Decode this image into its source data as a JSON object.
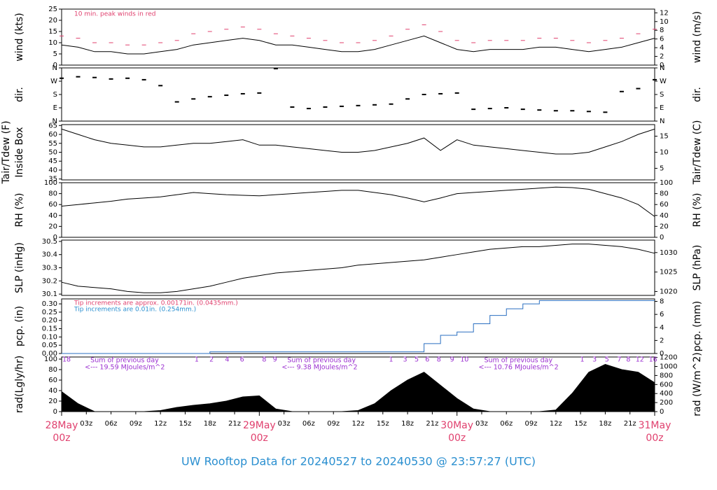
{
  "chart_data": [
    {
      "type": "line",
      "ylabel": "wind (kts)",
      "y2label": "wind (m/s)",
      "annotation": "10 min. peak winds in red",
      "xlim": [
        0,
        72
      ],
      "x": [
        0,
        2,
        4,
        6,
        8,
        10,
        12,
        14,
        16,
        18,
        20,
        22,
        24,
        26,
        28,
        30,
        32,
        34,
        36,
        38,
        40,
        42,
        44,
        46,
        48,
        50,
        52,
        54,
        56,
        58,
        60,
        62,
        64,
        66,
        68,
        70,
        72
      ],
      "ylim": [
        0,
        25
      ],
      "yticks": [
        0,
        5,
        10,
        15,
        20,
        25
      ],
      "y2lim": [
        0,
        12.86
      ],
      "y2ticks": [
        0,
        2,
        4,
        6,
        8,
        10,
        12
      ],
      "series": [
        {
          "color": "#000000",
          "values": [
            9,
            8,
            6,
            6,
            5,
            5,
            6,
            7,
            9,
            10,
            11,
            12,
            11,
            9,
            9,
            8,
            7,
            6,
            6,
            7,
            9,
            11,
            13,
            10,
            7,
            6,
            7,
            7,
            7,
            8,
            8,
            7,
            6,
            7,
            8,
            10,
            12
          ]
        },
        {
          "color": "#e0406e",
          "marker": "dash",
          "values": [
            13,
            12,
            10,
            10,
            9,
            9,
            10,
            11,
            14,
            15,
            16,
            17,
            16,
            14,
            13,
            12,
            11,
            10,
            10,
            11,
            13,
            16,
            18,
            15,
            11,
            10,
            11,
            11,
            11,
            12,
            12,
            11,
            10,
            11,
            12,
            14,
            16
          ]
        }
      ]
    },
    {
      "type": "scatter",
      "ylabel": "dir.",
      "y2label": "dir.",
      "xlim": [
        0,
        72
      ],
      "x": [
        0,
        2,
        4,
        6,
        8,
        10,
        12,
        14,
        16,
        18,
        20,
        22,
        24,
        26,
        28,
        30,
        32,
        34,
        36,
        38,
        40,
        42,
        44,
        46,
        48,
        50,
        52,
        54,
        56,
        58,
        60,
        62,
        64,
        66,
        68,
        70,
        72
      ],
      "ylim": [
        0,
        360
      ],
      "yticks": [
        {
          "value": 0,
          "label": "N"
        },
        {
          "value": 90,
          "label": "E"
        },
        {
          "value": 180,
          "label": "S"
        },
        {
          "value": 270,
          "label": "W"
        },
        {
          "value": 360,
          "label": "N"
        }
      ],
      "y2lim": [
        0,
        360
      ],
      "y2ticks": [
        {
          "value": 0,
          "label": "N"
        },
        {
          "value": 90,
          "label": "E"
        },
        {
          "value": 180,
          "label": "S"
        },
        {
          "value": 270,
          "label": "W"
        },
        {
          "value": 360,
          "label": "N"
        }
      ],
      "series": [
        {
          "color": "#000000",
          "values": [
            290,
            300,
            295,
            285,
            290,
            280,
            240,
            130,
            150,
            165,
            175,
            185,
            190,
            355,
            95,
            85,
            95,
            100,
            105,
            110,
            115,
            150,
            180,
            185,
            190,
            80,
            85,
            90,
            80,
            75,
            70,
            70,
            65,
            60,
            200,
            220,
            280
          ]
        }
      ]
    },
    {
      "type": "line",
      "ylabel": [
        "Tair/Tdew (F)",
        "Inside Box"
      ],
      "y2label": "Tair/Tdew (C)",
      "xlim": [
        0,
        72
      ],
      "x": [
        0,
        2,
        4,
        6,
        8,
        10,
        12,
        14,
        16,
        18,
        20,
        22,
        24,
        26,
        28,
        30,
        32,
        34,
        36,
        38,
        40,
        42,
        44,
        46,
        48,
        50,
        52,
        54,
        56,
        58,
        60,
        62,
        64,
        66,
        68,
        70,
        72
      ],
      "ylim": [
        34.5,
        65.5
      ],
      "yticks": [
        35,
        40,
        45,
        50,
        55,
        60,
        65
      ],
      "y2lim": [
        1.39,
        18.61
      ],
      "y2ticks": [
        5,
        10,
        15
      ],
      "series": [
        {
          "color": "#000000",
          "values": [
            63,
            60,
            57,
            55,
            54,
            53,
            53,
            54,
            55,
            55,
            56,
            57,
            54,
            54,
            53,
            52,
            51,
            50,
            50,
            51,
            53,
            55,
            58,
            51,
            57,
            54,
            53,
            52,
            51,
            50,
            49,
            49,
            50,
            53,
            56,
            60,
            63
          ]
        }
      ]
    },
    {
      "type": "line",
      "ylabel": "RH (%)",
      "y2label": "RH (%)",
      "xlim": [
        0,
        72
      ],
      "x": [
        0,
        2,
        4,
        6,
        8,
        10,
        12,
        14,
        16,
        18,
        20,
        22,
        24,
        26,
        28,
        30,
        32,
        34,
        36,
        38,
        40,
        42,
        44,
        46,
        48,
        50,
        52,
        54,
        56,
        58,
        60,
        62,
        64,
        66,
        68,
        70,
        72
      ],
      "ylim": [
        0,
        100
      ],
      "yticks": [
        0,
        20,
        40,
        60,
        80,
        100
      ],
      "y2lim": [
        0,
        100
      ],
      "y2ticks": [
        0,
        20,
        40,
        60,
        80,
        100
      ],
      "series": [
        {
          "color": "#000000",
          "values": [
            57,
            60,
            63,
            66,
            70,
            72,
            74,
            78,
            82,
            80,
            78,
            77,
            76,
            78,
            80,
            82,
            84,
            86,
            86,
            82,
            78,
            72,
            65,
            72,
            80,
            82,
            84,
            86,
            88,
            90,
            92,
            91,
            88,
            80,
            72,
            60,
            38
          ]
        }
      ]
    },
    {
      "type": "line",
      "ylabel": "SLP (inHg)",
      "y2label": "SLP (hPa)",
      "xlim": [
        0,
        72
      ],
      "x": [
        0,
        2,
        4,
        6,
        8,
        10,
        12,
        14,
        16,
        18,
        20,
        22,
        24,
        26,
        28,
        30,
        32,
        34,
        36,
        38,
        40,
        42,
        44,
        46,
        48,
        50,
        52,
        54,
        56,
        58,
        60,
        62,
        64,
        66,
        68,
        70,
        72
      ],
      "ylim": [
        30.09,
        30.51
      ],
      "yticks": [
        30.1,
        30.2,
        30.3,
        30.4,
        30.5
      ],
      "y2lim": [
        1019.0,
        1033.2
      ],
      "y2ticks": [
        1020,
        1025,
        1030
      ],
      "series": [
        {
          "color": "#000000",
          "values": [
            30.19,
            30.16,
            30.15,
            30.14,
            30.12,
            30.11,
            30.11,
            30.12,
            30.14,
            30.16,
            30.19,
            30.22,
            30.24,
            30.26,
            30.27,
            30.28,
            30.29,
            30.3,
            30.32,
            30.33,
            30.34,
            30.35,
            30.36,
            30.38,
            30.4,
            30.42,
            30.44,
            30.45,
            30.46,
            30.46,
            30.47,
            30.48,
            30.48,
            30.47,
            30.46,
            30.44,
            30.41
          ]
        }
      ]
    },
    {
      "type": "step",
      "ylabel": "pcp. (in)",
      "y2label": "pcp. (mm)",
      "notes": [
        {
          "text": "Tip increments are approx. 0.00171in. (0.0435mm.)",
          "color": "#e0406e"
        },
        {
          "text": "Tip increments are 0.01in. (0.254mm.)",
          "color": "#2a8fd0"
        }
      ],
      "xlim": [
        0,
        72
      ],
      "x": [
        0,
        2,
        4,
        6,
        8,
        10,
        12,
        14,
        16,
        18,
        20,
        22,
        24,
        26,
        28,
        30,
        32,
        34,
        36,
        38,
        40,
        42,
        44,
        46,
        48,
        50,
        52,
        54,
        56,
        58,
        60,
        62,
        64,
        66,
        68,
        70,
        72
      ],
      "ylim": [
        0,
        0.33
      ],
      "yticks": [
        {
          "value": 0,
          "label": "0.00"
        },
        0.05,
        {
          "value": 0.1,
          "label": "0.10"
        },
        0.15,
        {
          "value": 0.2,
          "label": "0.20"
        },
        0.25,
        {
          "value": 0.3,
          "label": "0.30"
        }
      ],
      "y2lim": [
        0,
        8.38
      ],
      "y2ticks": [
        0,
        2,
        4,
        6,
        8
      ],
      "series": [
        {
          "color": "#2a6fc0",
          "values": [
            0,
            0,
            0,
            0,
            0,
            0,
            0,
            0,
            0,
            0.01,
            0.01,
            0.01,
            0.01,
            0.01,
            0.01,
            0.01,
            0.01,
            0.01,
            0.01,
            0.01,
            0.01,
            0.01,
            0.06,
            0.11,
            0.13,
            0.18,
            0.23,
            0.27,
            0.3,
            0.32,
            0.32,
            0.32,
            0.32,
            0.32,
            0.32,
            0.32,
            0.32
          ]
        }
      ]
    },
    {
      "type": "area",
      "ylabel": "rad(Lgly/hr)",
      "y2label": "rad (W/m^2)",
      "title": "UW Rooftop Data for 20240527  to  20240530 @ 23:57:27  (UTC)",
      "xlim": [
        0,
        72
      ],
      "x": [
        0,
        2,
        4,
        6,
        8,
        10,
        12,
        14,
        16,
        18,
        20,
        22,
        24,
        26,
        28,
        30,
        32,
        34,
        36,
        38,
        40,
        42,
        44,
        46,
        48,
        50,
        52,
        54,
        56,
        58,
        60,
        62,
        64,
        66,
        68,
        70,
        72
      ],
      "ylim": [
        0,
        104
      ],
      "yticks": [
        0,
        20,
        40,
        60,
        80,
        100
      ],
      "y2lim": [
        0,
        1209.5
      ],
      "y2ticks": [
        0,
        200,
        400,
        600,
        800,
        1000,
        1200
      ],
      "xticks": [
        {
          "value": 3,
          "label": "03z"
        },
        {
          "value": 6,
          "label": "06z"
        },
        {
          "value": 9,
          "label": "09z"
        },
        {
          "value": 12,
          "label": "12z"
        },
        {
          "value": 15,
          "label": "15z"
        },
        {
          "value": 18,
          "label": "18z"
        },
        {
          "value": 21,
          "label": "21z"
        },
        {
          "value": 27,
          "label": "03z"
        },
        {
          "value": 30,
          "label": "06z"
        },
        {
          "value": 33,
          "label": "09z"
        },
        {
          "value": 36,
          "label": "12z"
        },
        {
          "value": 39,
          "label": "15z"
        },
        {
          "value": 42,
          "label": "18z"
        },
        {
          "value": 45,
          "label": "21z"
        },
        {
          "value": 51,
          "label": "03z"
        },
        {
          "value": 54,
          "label": "06z"
        },
        {
          "value": 57,
          "label": "09z"
        },
        {
          "value": 60,
          "label": "12z"
        },
        {
          "value": 63,
          "label": "15z"
        },
        {
          "value": 66,
          "label": "18z"
        },
        {
          "value": 69,
          "label": "21z"
        }
      ],
      "day_ticks": [
        {
          "value": 0,
          "label": "28May",
          "hour": "00z"
        },
        {
          "value": 24,
          "label": "29May",
          "hour": "00z"
        },
        {
          "value": 48,
          "label": "30May",
          "hour": "00z"
        },
        {
          "value": 72,
          "label": "31May",
          "hour": "00z"
        }
      ],
      "hour_labels": [
        {
          "x": 0.6,
          "label": "18"
        },
        {
          "x": 16.4,
          "label": "1"
        },
        {
          "x": 18.2,
          "label": "2"
        },
        {
          "x": 20.1,
          "label": "4"
        },
        {
          "x": 21.9,
          "label": "6"
        },
        {
          "x": 24.6,
          "label": "8"
        },
        {
          "x": 25.9,
          "label": "9"
        },
        {
          "x": 40.0,
          "label": "1"
        },
        {
          "x": 41.7,
          "label": "3"
        },
        {
          "x": 43.1,
          "label": "5"
        },
        {
          "x": 44.4,
          "label": "6"
        },
        {
          "x": 45.8,
          "label": "8"
        },
        {
          "x": 47.4,
          "label": "9"
        },
        {
          "x": 48.9,
          "label": "10"
        },
        {
          "x": 63.2,
          "label": "1"
        },
        {
          "x": 64.7,
          "label": "3"
        },
        {
          "x": 66.2,
          "label": "5"
        },
        {
          "x": 67.7,
          "label": "7"
        },
        {
          "x": 68.8,
          "label": "8"
        },
        {
          "x": 70.2,
          "label": "12"
        },
        {
          "x": 71.8,
          "label": "16"
        }
      ],
      "sum_labels": [
        {
          "x": 3.5,
          "label": "Sum of previous day",
          "total": "<--- 19.59 MJoules/m^2"
        },
        {
          "x": 27.4,
          "label": "Sum of previous day",
          "total": "<--- 9.38 MJoules/m^2"
        },
        {
          "x": 51.3,
          "label": "Sum of previous day",
          "total": "<--- 10.76 MJoules/m^2"
        }
      ],
      "series": [
        {
          "color": "#000000",
          "values": [
            38,
            15,
            0,
            0,
            0,
            0,
            2,
            8,
            12,
            15,
            20,
            28,
            30,
            5,
            0,
            0,
            0,
            0,
            2,
            15,
            40,
            60,
            75,
            50,
            25,
            5,
            0,
            0,
            0,
            0,
            3,
            35,
            75,
            90,
            80,
            75,
            55
          ]
        }
      ]
    }
  ]
}
